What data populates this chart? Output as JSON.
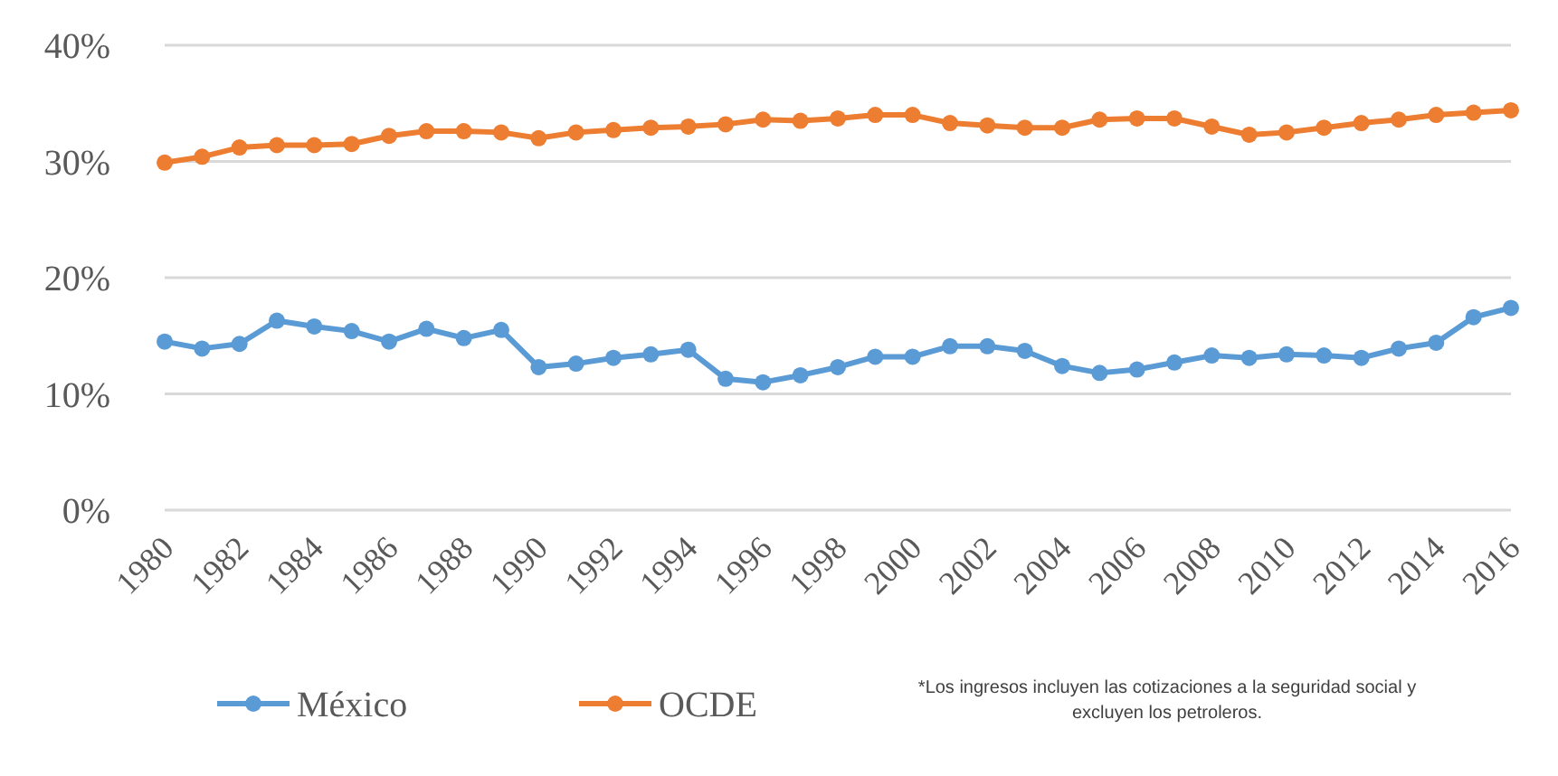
{
  "chart_data": {
    "type": "line",
    "x": [
      1980,
      1981,
      1982,
      1983,
      1984,
      1985,
      1986,
      1987,
      1988,
      1989,
      1990,
      1991,
      1992,
      1993,
      1994,
      1995,
      1996,
      1997,
      1998,
      1999,
      2000,
      2001,
      2002,
      2003,
      2004,
      2005,
      2006,
      2007,
      2008,
      2009,
      2010,
      2011,
      2012,
      2013,
      2014,
      2015,
      2016
    ],
    "series": [
      {
        "name": "México",
        "color": "#5b9bd5",
        "values": [
          14.5,
          13.9,
          14.3,
          16.3,
          15.8,
          15.4,
          14.5,
          15.6,
          14.8,
          15.5,
          12.3,
          12.6,
          13.1,
          13.4,
          13.8,
          11.3,
          11.0,
          11.6,
          12.3,
          13.2,
          13.2,
          14.1,
          14.1,
          13.7,
          12.4,
          11.8,
          12.1,
          12.7,
          13.3,
          13.1,
          13.4,
          13.3,
          13.1,
          13.9,
          14.4,
          16.6,
          17.4
        ]
      },
      {
        "name": "OCDE",
        "color": "#ed7d31",
        "values": [
          29.9,
          30.4,
          31.2,
          31.4,
          31.4,
          31.5,
          32.2,
          32.6,
          32.6,
          32.5,
          32.0,
          32.5,
          32.7,
          32.9,
          33.0,
          33.2,
          33.6,
          33.5,
          33.7,
          34.0,
          34.0,
          33.3,
          33.1,
          32.9,
          32.9,
          33.6,
          33.7,
          33.7,
          33.0,
          32.3,
          32.5,
          32.9,
          33.3,
          33.6,
          34.0,
          34.2,
          34.4
        ]
      }
    ],
    "xlim": [
      1980,
      2016
    ],
    "xticks": [
      1980,
      1982,
      1984,
      1986,
      1988,
      1990,
      1992,
      1994,
      1996,
      1998,
      2000,
      2002,
      2004,
      2006,
      2008,
      2010,
      2012,
      2014,
      2016
    ],
    "ylim": [
      0,
      40
    ],
    "yticks": [
      {
        "value": 0,
        "label": "0%"
      },
      {
        "value": 10,
        "label": "10%"
      },
      {
        "value": 20,
        "label": "20%"
      },
      {
        "value": 30,
        "label": "30%"
      },
      {
        "value": 40,
        "label": "40%"
      }
    ],
    "grid": "y",
    "legend": "bottom",
    "marker": "circle",
    "line_style": "solid",
    "annotations": [
      "*Los ingresos incluyen las cotizaciones a la seguridad social y excluyen los petroleros."
    ]
  }
}
